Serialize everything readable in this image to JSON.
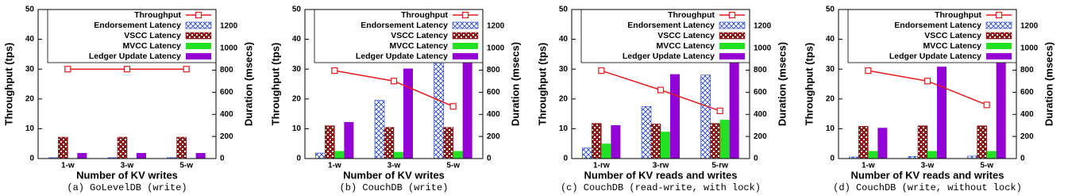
{
  "chart_data": [
    {
      "type": "bar",
      "caption": "(a) GoLevelDB (write)",
      "x_label": "Number of KV writes",
      "y_label": "Throughput (tps)",
      "y2_label": "Duration (msecs)",
      "categories": [
        "1-w",
        "3-w",
        "5-w"
      ],
      "ylim": [
        0,
        50
      ],
      "yticks": [
        0,
        10,
        20,
        30,
        40,
        50
      ],
      "y2lim": [
        0,
        1350
      ],
      "y2ticks": [
        0,
        200,
        400,
        600,
        800,
        1000,
        1200
      ],
      "series": [
        {
          "name": "Throughput",
          "type": "line",
          "color": "#e41a1c",
          "values": [
            30,
            30,
            30
          ]
        },
        {
          "name": "Endorsement Latency",
          "type": "bar",
          "axis": "y2",
          "color": "#1f3fd0",
          "hatch": "x",
          "values": [
            8,
            8,
            8
          ]
        },
        {
          "name": "VSCC Latency",
          "type": "bar",
          "axis": "y2",
          "color": "#8b1a1a",
          "hatch": "checker",
          "values": [
            194,
            194,
            194
          ]
        },
        {
          "name": "MVCC Latency",
          "type": "bar",
          "axis": "y2",
          "color": "#22e022",
          "values": [
            3,
            3,
            3
          ]
        },
        {
          "name": "Ledger Update Latency",
          "type": "bar",
          "axis": "y2",
          "color": "#9400d3",
          "values": [
            50,
            50,
            50
          ]
        }
      ]
    },
    {
      "type": "bar",
      "caption": "(b) CouchDB (write)",
      "x_label": "Number of KV writes",
      "y_label": "Throughput (tps)",
      "y2_label": "Duration (msecs)",
      "categories": [
        "1-w",
        "3-w",
        "5-w"
      ],
      "ylim": [
        0,
        50
      ],
      "yticks": [
        0,
        10,
        20,
        30,
        40,
        50
      ],
      "y2lim": [
        0,
        1350
      ],
      "y2ticks": [
        0,
        200,
        400,
        600,
        800,
        1000,
        1200
      ],
      "series": [
        {
          "name": "Throughput",
          "type": "line",
          "color": "#e41a1c",
          "values": [
            29.5,
            26,
            17.5
          ]
        },
        {
          "name": "Endorsement Latency",
          "type": "bar",
          "axis": "y2",
          "color": "#1f3fd0",
          "hatch": "x",
          "values": [
            50,
            527,
            920
          ]
        },
        {
          "name": "VSCC Latency",
          "type": "bar",
          "axis": "y2",
          "color": "#8b1a1a",
          "hatch": "checker",
          "values": [
            297,
            283,
            283
          ]
        },
        {
          "name": "MVCC Latency",
          "type": "bar",
          "axis": "y2",
          "color": "#22e022",
          "values": [
            68,
            60,
            68
          ]
        },
        {
          "name": "Ledger Update Latency",
          "type": "bar",
          "axis": "y2",
          "color": "#9400d3",
          "values": [
            330,
            815,
            1270
          ]
        }
      ]
    },
    {
      "type": "bar",
      "caption": "(c) CouchDB (read-write, with lock)",
      "x_label": "Number of KV reads and writes",
      "y_label": "Throughput (tps)",
      "y2_label": "Duration (msecs)",
      "categories": [
        "1-rw",
        "3-rw",
        "5-rw"
      ],
      "ylim": [
        0,
        50
      ],
      "yticks": [
        0,
        10,
        20,
        30,
        40,
        50
      ],
      "y2lim": [
        0,
        1350
      ],
      "y2ticks": [
        0,
        200,
        400,
        600,
        800,
        1000,
        1200
      ],
      "series": [
        {
          "name": "Throughput",
          "type": "line",
          "color": "#e41a1c",
          "values": [
            29.5,
            23,
            16
          ]
        },
        {
          "name": "Endorsement Latency",
          "type": "bar",
          "axis": "y2",
          "color": "#1f3fd0",
          "hatch": "x",
          "values": [
            95,
            472,
            756
          ]
        },
        {
          "name": "VSCC Latency",
          "type": "bar",
          "axis": "y2",
          "color": "#8b1a1a",
          "hatch": "checker",
          "values": [
            318,
            313,
            318
          ]
        },
        {
          "name": "MVCC Latency",
          "type": "bar",
          "axis": "y2",
          "color": "#22e022",
          "values": [
            135,
            243,
            351
          ]
        },
        {
          "name": "Ledger Update Latency",
          "type": "bar",
          "axis": "y2",
          "color": "#9400d3",
          "values": [
            302,
            764,
            1228
          ]
        }
      ]
    },
    {
      "type": "bar",
      "caption": "(d) CouchDB (write, without lock)",
      "x_label": "Number of KV reads and writes",
      "y_label": "Throughput (tps)",
      "y2_label": "Duration (msecs)",
      "categories": [
        "1-w",
        "3-w",
        "5-w"
      ],
      "ylim": [
        0,
        50
      ],
      "yticks": [
        0,
        10,
        20,
        30,
        40,
        50
      ],
      "y2lim": [
        0,
        1350
      ],
      "y2ticks": [
        0,
        200,
        400,
        600,
        800,
        1000,
        1200
      ],
      "series": [
        {
          "name": "Throughput",
          "type": "line",
          "color": "#e41a1c",
          "values": [
            29.5,
            26,
            18
          ]
        },
        {
          "name": "Endorsement Latency",
          "type": "bar",
          "axis": "y2",
          "color": "#1f3fd0",
          "hatch": "x",
          "values": [
            14,
            19,
            22
          ]
        },
        {
          "name": "VSCC Latency",
          "type": "bar",
          "axis": "y2",
          "color": "#8b1a1a",
          "hatch": "checker",
          "values": [
            292,
            297,
            297
          ]
        },
        {
          "name": "MVCC Latency",
          "type": "bar",
          "axis": "y2",
          "color": "#22e022",
          "values": [
            68,
            68,
            68
          ]
        },
        {
          "name": "Ledger Update Latency",
          "type": "bar",
          "axis": "y2",
          "color": "#9400d3",
          "values": [
            278,
            832,
            1283
          ]
        }
      ]
    }
  ]
}
